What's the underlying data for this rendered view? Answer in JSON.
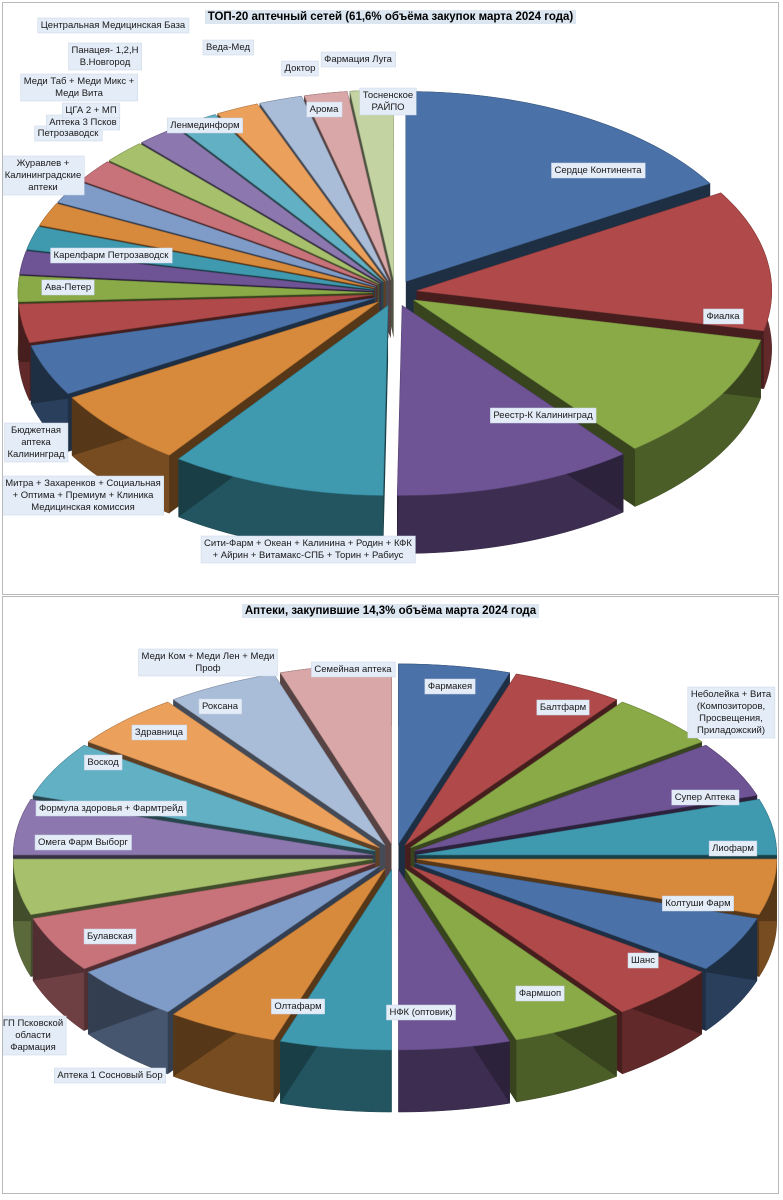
{
  "chart_data": [
    {
      "type": "pie",
      "title": "ТОП-20 аптечный сетей (61,6% объёма закупок марта 2024 года)",
      "slices": [
        {
          "label": "Сердце Континента",
          "value": 15.0,
          "color": "#4a72a8"
        },
        {
          "label": "Фиалка",
          "value": 11.0,
          "color": "#b04a4a"
        },
        {
          "label": "Реестр-К Калининград",
          "value": 10.0,
          "color": "#8aaa48"
        },
        {
          "label": "Сити-Фарм + Океан + Калинина + Родин + КФК + Айрин + Витамакс-СПБ + Торин + Рабиус",
          "value": 10.0,
          "color": "#6e5494"
        },
        {
          "label": "Митра + Захаренков + Социальная + Оптима + Премиум + Клиника Медицинская комиссия",
          "value": 9.0,
          "color": "#3f9ab0"
        },
        {
          "label": "Бюджетная аптека Калининград",
          "value": 6.0,
          "color": "#d88a3c"
        },
        {
          "label": "Ава-Петер",
          "value": 4.0,
          "color": "#4a72a8"
        },
        {
          "label": "Карелфарм Петрозаводск",
          "value": 3.0,
          "color": "#b04a4a"
        },
        {
          "label": "Журавлев + Калининградские аптеки",
          "value": 2.0,
          "color": "#8aaa48"
        },
        {
          "label": "Петрозаводск",
          "value": 1.8,
          "color": "#6e5494"
        },
        {
          "label": "Аптека 3 Псков",
          "value": 1.8,
          "color": "#3f9ab0"
        },
        {
          "label": "ЦГА 2 + МП",
          "value": 1.8,
          "color": "#d88a3c"
        },
        {
          "label": "Меди Таб + Меди Микс + Меди Вита",
          "value": 1.8,
          "color": "#7f9cc8"
        },
        {
          "label": "Панацея- 1,2,Н В.Новгород",
          "value": 1.8,
          "color": "#c8727a"
        },
        {
          "label": "Центральная Медицинская База",
          "value": 1.8,
          "color": "#a6c06c"
        },
        {
          "label": "Ленмединформ",
          "value": 1.8,
          "color": "#8c78ae"
        },
        {
          "label": "Веда-Мед",
          "value": 1.8,
          "color": "#62b0c4"
        },
        {
          "label": "Доктор",
          "value": 1.8,
          "color": "#eba05c"
        },
        {
          "label": "Арома",
          "value": 1.8,
          "color": "#a9bcd8"
        },
        {
          "label": "Фармация Луга",
          "value": 1.8,
          "color": "#d9a7a7"
        },
        {
          "label": "Тосненское РАЙПО",
          "value": 1.8,
          "color": "#c3d3a2"
        }
      ]
    },
    {
      "type": "pie",
      "title": "Аптеки, закупившие 14,3% объёма марта 2024 года",
      "slices": [
        {
          "label": "Фармакея",
          "value": 5.0,
          "color": "#4a72a8"
        },
        {
          "label": "Балтфарм",
          "value": 5.0,
          "color": "#b04a4a"
        },
        {
          "label": "Неболейка + Вита (Композиторов, Просвещения, Приладожский)",
          "value": 5.0,
          "color": "#8aaa48"
        },
        {
          "label": "Супер Аптека",
          "value": 5.0,
          "color": "#6e5494"
        },
        {
          "label": "Лиофарм",
          "value": 5.0,
          "color": "#3f9ab0"
        },
        {
          "label": "Колтуши Фарм",
          "value": 5.0,
          "color": "#d88a3c"
        },
        {
          "label": "Шанс",
          "value": 5.0,
          "color": "#4a72a8"
        },
        {
          "label": "Фармшоп",
          "value": 5.0,
          "color": "#b04a4a"
        },
        {
          "label": "НФК (оптовик)",
          "value": 5.0,
          "color": "#8aaa48"
        },
        {
          "label": "Олтафарм",
          "value": 5.0,
          "color": "#6e5494"
        },
        {
          "label": "Аптека 1 Сосновый Бор",
          "value": 5.0,
          "color": "#3f9ab0"
        },
        {
          "label": "Булавская",
          "value": 5.0,
          "color": "#d88a3c"
        },
        {
          "label": "ГП Псковской области Фармация",
          "value": 5.0,
          "color": "#7f9cc8"
        },
        {
          "label": "Омега Фарм Выборг",
          "value": 5.0,
          "color": "#c8727a"
        },
        {
          "label": "Формула здоровья + Фармтрейд",
          "value": 5.0,
          "color": "#a6c06c"
        },
        {
          "label": "Воскод",
          "value": 5.0,
          "color": "#8c78ae"
        },
        {
          "label": "Здравница",
          "value": 5.0,
          "color": "#62b0c4"
        },
        {
          "label": "Роксана",
          "value": 5.0,
          "color": "#eba05c"
        },
        {
          "label": "Меди Ком + Меди Лен + Меди Проф",
          "value": 5.0,
          "color": "#a9bcd8"
        },
        {
          "label": "Семейная аптека",
          "value": 5.0,
          "color": "#d9a7a7"
        }
      ]
    }
  ]
}
